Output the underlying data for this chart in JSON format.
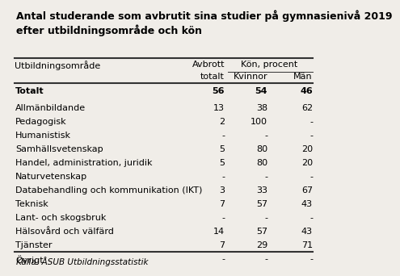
{
  "title": "Antal studerande som avbrutit sina studier på gymnasienivå 2019\nefter utbildningsområde och kön",
  "source": "Källa: ÅSUB Utbildningsstatistik",
  "rows": [
    [
      "Totalt",
      "56",
      "54",
      "46",
      true
    ],
    [
      "Allmänbildande",
      "13",
      "38",
      "62",
      false
    ],
    [
      "Pedagogisk",
      "2",
      "100",
      "-",
      false
    ],
    [
      "Humanistisk",
      "-",
      "-",
      "-",
      false
    ],
    [
      "Samhällsvetenskap",
      "5",
      "80",
      "20",
      false
    ],
    [
      "Handel, administration, juridik",
      "5",
      "80",
      "20",
      false
    ],
    [
      "Naturvetenskap",
      "-",
      "-",
      "-",
      false
    ],
    [
      "Databehandling och kommunikation (IKT)",
      "3",
      "33",
      "67",
      false
    ],
    [
      "Teknisk",
      "7",
      "57",
      "43",
      false
    ],
    [
      "Lant- och skogsbruk",
      "-",
      "-",
      "-",
      false
    ],
    [
      "Hälsovård och välfärd",
      "14",
      "57",
      "43",
      false
    ],
    [
      "Tjänster",
      "7",
      "29",
      "71",
      false
    ],
    [
      "Övrigt",
      "-",
      "-",
      "-",
      false
    ]
  ],
  "background_color": "#f0ede8",
  "title_fontsize": 9.0,
  "header_fontsize": 8.0,
  "data_fontsize": 8.0,
  "source_fontsize": 7.5
}
